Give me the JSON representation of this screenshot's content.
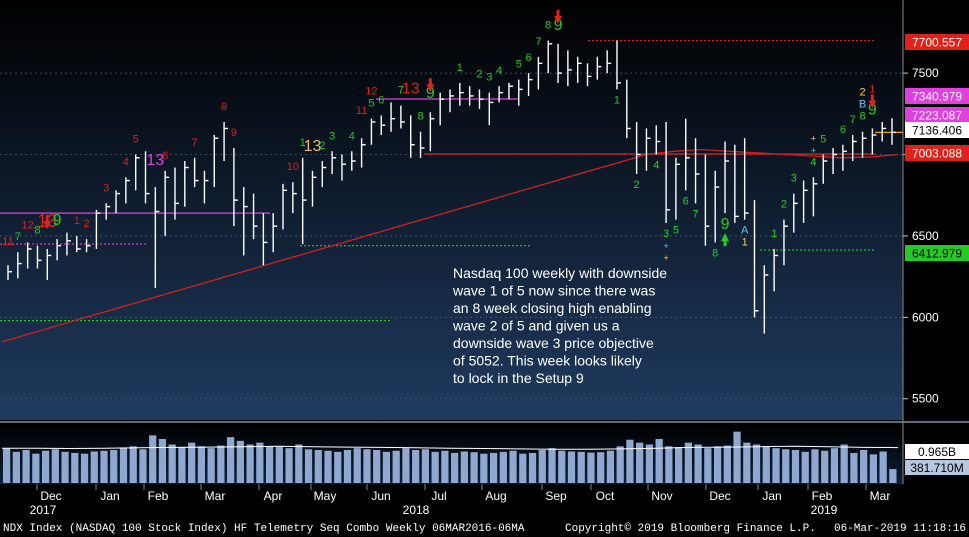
{
  "chart_data": {
    "type": "bar",
    "subtype": "ohlc-weekly",
    "y_ticks": [
      5500,
      6000,
      6500,
      7000,
      7500
    ],
    "ylim": [
      5400,
      7900
    ],
    "price_tags": [
      {
        "value": 7700.557,
        "label": "7700.557",
        "bg": "#e0201a",
        "fg": "#ffffff"
      },
      {
        "value": 7340.979,
        "label": "7340.979",
        "bg": "#e040e0",
        "fg": "#ffffff"
      },
      {
        "value": 7223.087,
        "label": "7223.087",
        "bg": "#e040e0",
        "fg": "#ffffff"
      },
      {
        "value": 7136.406,
        "label": "7136.406",
        "bg": "#ffffff",
        "fg": "#000000"
      },
      {
        "value": 7003.088,
        "label": "7003.088",
        "bg": "#e0201a",
        "fg": "#ffffff"
      },
      {
        "value": 6412.979,
        "label": "6412.979",
        "bg": "#22cc22",
        "fg": "#000000"
      }
    ],
    "volume_tags": [
      {
        "value": 0.965,
        "label": "0.965B",
        "bg": "#ffffff",
        "fg": "#000000"
      },
      {
        "value": 0.38171,
        "label": "381.710M",
        "bg": "#b7c7e0",
        "fg": "#000000"
      }
    ],
    "volume_ylim": [
      0,
      1.5
    ],
    "x_labels": [
      "Dec",
      "Jan",
      "Feb",
      "Mar",
      "Apr",
      "May",
      "Jun",
      "Jul",
      "Aug",
      "Sep",
      "Oct",
      "Nov",
      "Dec",
      "Jan",
      "Feb",
      "Mar"
    ],
    "year_labels": [
      "2017",
      "2018",
      "2019"
    ],
    "bars": [
      {
        "h": 6320,
        "l": 6230,
        "c": 6280
      },
      {
        "h": 6400,
        "l": 6240,
        "c": 6330
      },
      {
        "h": 6460,
        "l": 6300,
        "c": 6420
      },
      {
        "h": 6440,
        "l": 6300,
        "c": 6350
      },
      {
        "h": 6420,
        "l": 6230,
        "c": 6380
      },
      {
        "h": 6480,
        "l": 6350,
        "c": 6440
      },
      {
        "h": 6520,
        "l": 6380,
        "c": 6470
      },
      {
        "h": 6500,
        "l": 6400,
        "c": 6420
      },
      {
        "h": 6480,
        "l": 6400,
        "c": 6440
      },
      {
        "h": 6660,
        "l": 6420,
        "c": 6640
      },
      {
        "h": 6700,
        "l": 6600,
        "c": 6680
      },
      {
        "h": 6780,
        "l": 6640,
        "c": 6760
      },
      {
        "h": 6860,
        "l": 6700,
        "c": 6840
      },
      {
        "h": 7000,
        "l": 6780,
        "c": 6980
      },
      {
        "h": 7020,
        "l": 6700,
        "c": 6760
      },
      {
        "h": 6800,
        "l": 6180,
        "c": 6650
      },
      {
        "h": 6900,
        "l": 6500,
        "c": 6860
      },
      {
        "h": 6920,
        "l": 6600,
        "c": 6700
      },
      {
        "h": 6960,
        "l": 6680,
        "c": 6920
      },
      {
        "h": 6980,
        "l": 6800,
        "c": 6840
      },
      {
        "h": 6900,
        "l": 6700,
        "c": 6840
      },
      {
        "h": 7120,
        "l": 6800,
        "c": 7100
      },
      {
        "h": 7200,
        "l": 6960,
        "c": 7160
      },
      {
        "h": 7040,
        "l": 6560,
        "c": 6720
      },
      {
        "h": 6800,
        "l": 6380,
        "c": 6680
      },
      {
        "h": 6760,
        "l": 6480,
        "c": 6560
      },
      {
        "h": 6640,
        "l": 6320,
        "c": 6460
      },
      {
        "h": 6640,
        "l": 6400,
        "c": 6560
      },
      {
        "h": 6820,
        "l": 6540,
        "c": 6780
      },
      {
        "h": 6830,
        "l": 6640,
        "c": 6760
      },
      {
        "h": 6980,
        "l": 6450,
        "c": 6720
      },
      {
        "h": 6900,
        "l": 6680,
        "c": 6860
      },
      {
        "h": 6960,
        "l": 6800,
        "c": 6920
      },
      {
        "h": 7020,
        "l": 6880,
        "c": 6980
      },
      {
        "h": 7000,
        "l": 6840,
        "c": 6940
      },
      {
        "h": 7020,
        "l": 6900,
        "c": 6960
      },
      {
        "h": 7100,
        "l": 6920,
        "c": 7060
      },
      {
        "h": 7220,
        "l": 7060,
        "c": 7200
      },
      {
        "h": 7240,
        "l": 7120,
        "c": 7180
      },
      {
        "h": 7320,
        "l": 7140,
        "c": 7220
      },
      {
        "h": 7300,
        "l": 7160,
        "c": 7200
      },
      {
        "h": 7240,
        "l": 6980,
        "c": 7060
      },
      {
        "h": 7140,
        "l": 6980,
        "c": 7040
      },
      {
        "h": 7260,
        "l": 7020,
        "c": 7220
      },
      {
        "h": 7380,
        "l": 7180,
        "c": 7340
      },
      {
        "h": 7400,
        "l": 7260,
        "c": 7360
      },
      {
        "h": 7440,
        "l": 7300,
        "c": 7380
      },
      {
        "h": 7420,
        "l": 7300,
        "c": 7360
      },
      {
        "h": 7400,
        "l": 7280,
        "c": 7340
      },
      {
        "h": 7380,
        "l": 7180,
        "c": 7320
      },
      {
        "h": 7420,
        "l": 7320,
        "c": 7380
      },
      {
        "h": 7440,
        "l": 7340,
        "c": 7420
      },
      {
        "h": 7460,
        "l": 7300,
        "c": 7400
      },
      {
        "h": 7500,
        "l": 7360,
        "c": 7460
      },
      {
        "h": 7600,
        "l": 7400,
        "c": 7560
      },
      {
        "h": 7700,
        "l": 7500,
        "c": 7680
      },
      {
        "h": 7680,
        "l": 7440,
        "c": 7500
      },
      {
        "h": 7640,
        "l": 7420,
        "c": 7520
      },
      {
        "h": 7600,
        "l": 7440,
        "c": 7560
      },
      {
        "h": 7560,
        "l": 7420,
        "c": 7480
      },
      {
        "h": 7600,
        "l": 7460,
        "c": 7540
      },
      {
        "h": 7640,
        "l": 7500,
        "c": 7560
      },
      {
        "h": 7700,
        "l": 7400,
        "c": 7440
      },
      {
        "h": 7460,
        "l": 7100,
        "c": 7160
      },
      {
        "h": 7200,
        "l": 6880,
        "c": 7000
      },
      {
        "h": 7160,
        "l": 6900,
        "c": 7100
      },
      {
        "h": 7180,
        "l": 7000,
        "c": 7080
      },
      {
        "h": 7200,
        "l": 6580,
        "c": 6660
      },
      {
        "h": 6980,
        "l": 6600,
        "c": 6940
      },
      {
        "h": 7220,
        "l": 6780,
        "c": 6980
      },
      {
        "h": 7100,
        "l": 6700,
        "c": 6880
      },
      {
        "h": 7000,
        "l": 6440,
        "c": 6560
      },
      {
        "h": 6900,
        "l": 6460,
        "c": 6800
      },
      {
        "h": 7080,
        "l": 6640,
        "c": 6960
      },
      {
        "h": 7060,
        "l": 6580,
        "c": 6620
      },
      {
        "h": 7100,
        "l": 6600,
        "c": 6640
      },
      {
        "h": 6720,
        "l": 6000,
        "c": 6040
      },
      {
        "h": 6320,
        "l": 5900,
        "c": 6260
      },
      {
        "h": 6420,
        "l": 6160,
        "c": 6380
      },
      {
        "h": 6600,
        "l": 6320,
        "c": 6560
      },
      {
        "h": 6760,
        "l": 6520,
        "c": 6700
      },
      {
        "h": 6840,
        "l": 6580,
        "c": 6780
      },
      {
        "h": 6860,
        "l": 6620,
        "c": 6820
      },
      {
        "h": 7000,
        "l": 6820,
        "c": 6960
      },
      {
        "h": 7040,
        "l": 6880,
        "c": 7000
      },
      {
        "h": 7060,
        "l": 6900,
        "c": 7020
      },
      {
        "h": 7120,
        "l": 6960,
        "c": 7080
      },
      {
        "h": 7140,
        "l": 6980,
        "c": 7100
      },
      {
        "h": 7160,
        "l": 7000,
        "c": 7120
      },
      {
        "h": 7200,
        "l": 7080,
        "c": 7160
      },
      {
        "h": 7223,
        "l": 7060,
        "c": 7136
      }
    ],
    "volume": [
      0.95,
      0.85,
      0.9,
      0.8,
      0.88,
      0.92,
      0.85,
      0.82,
      0.8,
      0.86,
      0.88,
      0.9,
      0.95,
      1.0,
      0.92,
      1.3,
      1.2,
      1.05,
      0.98,
      1.1,
      1.0,
      0.95,
      1.02,
      1.25,
      1.15,
      1.05,
      1.1,
      1.0,
      0.98,
      0.95,
      1.05,
      0.92,
      0.9,
      0.88,
      0.85,
      0.9,
      0.95,
      0.92,
      0.9,
      0.85,
      0.88,
      0.95,
      0.9,
      0.92,
      0.85,
      0.88,
      0.82,
      0.86,
      0.84,
      0.8,
      0.82,
      0.85,
      0.88,
      0.8,
      0.82,
      0.9,
      0.95,
      0.88,
      0.86,
      0.85,
      0.83,
      0.84,
      0.88,
      1.0,
      1.18,
      1.1,
      1.05,
      1.2,
      1.0,
      0.98,
      1.1,
      1.05,
      0.95,
      1.0,
      1.02,
      1.4,
      1.1,
      1.05,
      0.98,
      0.95,
      0.92,
      0.9,
      0.85,
      0.92,
      0.88,
      0.95,
      1.05,
      0.82,
      0.9,
      0.78,
      0.86,
      0.38
    ],
    "moving_average": [
      5850,
      5900,
      5950,
      6000,
      6050,
      6100,
      6150,
      6200,
      6250,
      6300,
      6350,
      6400,
      6450,
      6500,
      6550,
      6600,
      6650,
      6700,
      6750,
      6800,
      6850,
      6900,
      6950,
      7000,
      7020,
      7030,
      7020,
      7010,
      7000,
      6990,
      6980,
      6985,
      7000
    ],
    "levels": [
      {
        "value": 7700.557,
        "color": "#e0201a",
        "dash": true
      },
      {
        "value": 7340.979,
        "color": "#e040e0"
      },
      {
        "value": 7003.088,
        "color": "#e0201a"
      },
      {
        "value": 6640,
        "color": "#e040e0"
      },
      {
        "value": 6450,
        "color": "#e040e0",
        "dash": true
      },
      {
        "value": 6440,
        "color": "#22cc22",
        "dash": true
      },
      {
        "value": 6412.979,
        "color": "#22cc22",
        "dash": true
      },
      {
        "value": 5980,
        "color": "#22cc22",
        "dash": true
      }
    ],
    "annotation": "Nasdaq 100 weekly with downside wave 1 of 5 now since there was an 8 week closing high enabling wave 2 of 5 and given us a downside wave 3 price objective of 5052.  This week looks likely to lock in the Setup 9",
    "annotation_lines": [
      "Nasdaq 100 weekly with downside",
      "wave 1 of 5 now since there was",
      "an 8 week closing high enabling",
      "wave 2 of 5 and given us a",
      "downside wave 3 price objective",
      "of 5052.  This week looks likely",
      "to lock in the Setup 9"
    ],
    "counts": [
      {
        "bar": 0,
        "t": "11",
        "c": "#e0201a",
        "s": 11,
        "off": -20
      },
      {
        "bar": 1,
        "t": "7",
        "c": "#22cc22",
        "s": 11,
        "off": -12
      },
      {
        "bar": 2,
        "t": "12",
        "c": "#e0201a",
        "s": 11,
        "off": -14
      },
      {
        "bar": 3,
        "t": "8",
        "c": "#22cc22",
        "s": 11,
        "off": -12
      },
      {
        "bar": 4,
        "t": "13",
        "c": "#e0201a",
        "s": 18,
        "off": -22
      },
      {
        "bar": 5,
        "t": "9",
        "c": "#22cc22",
        "s": 16,
        "off": -14
      },
      {
        "bar": 7,
        "t": "1",
        "c": "#e0201a",
        "s": 11,
        "off": -12
      },
      {
        "bar": 8,
        "t": "2",
        "c": "#e0201a",
        "s": 11,
        "off": -12
      },
      {
        "bar": 10,
        "t": "3",
        "c": "#e0201a",
        "s": 11,
        "off": -12
      },
      {
        "bar": 12,
        "t": "4",
        "c": "#e0201a",
        "s": 11,
        "off": -12
      },
      {
        "bar": 13,
        "t": "5",
        "c": "#e0201a",
        "s": 11,
        "off": -12
      },
      {
        "bar": 15,
        "t": "13",
        "c": "#e040e0",
        "s": 16,
        "off": -22
      },
      {
        "bar": 16,
        "t": "6",
        "c": "#e0201a",
        "s": 11,
        "off": -12
      },
      {
        "bar": 19,
        "t": "7",
        "c": "#e0201a",
        "s": 11,
        "off": -12
      },
      {
        "bar": 22,
        "t": "8",
        "c": "#e0201a",
        "s": 11,
        "off": -12
      },
      {
        "bar": 23,
        "t": "9",
        "c": "#e0201a",
        "s": 11,
        "off": -12
      },
      {
        "bar": 29,
        "t": "10",
        "c": "#e0201a",
        "s": 11,
        "off": -12
      },
      {
        "bar": 30,
        "t": "1",
        "c": "#22cc22",
        "s": 11,
        "off": -12
      },
      {
        "bar": 31,
        "t": "13",
        "c": "#f4b26a",
        "s": 16,
        "off": -20
      },
      {
        "bar": 32,
        "t": "2",
        "c": "#22cc22",
        "s": 11,
        "off": -12
      },
      {
        "bar": 33,
        "t": "3",
        "c": "#22cc22",
        "s": 11,
        "off": -12
      },
      {
        "bar": 35,
        "t": "4",
        "c": "#22cc22",
        "s": 11,
        "off": -12
      },
      {
        "bar": 36,
        "t": "11",
        "c": "#e0201a",
        "s": 11,
        "off": -24
      },
      {
        "bar": 37,
        "t": "5",
        "c": "#22cc22",
        "s": 11,
        "off": -12
      },
      {
        "bar": 37,
        "t": "12",
        "c": "#e0201a",
        "s": 11,
        "off": -24
      },
      {
        "bar": 38,
        "t": "6",
        "c": "#22cc22",
        "s": 11,
        "off": -12
      },
      {
        "bar": 40,
        "t": "7",
        "c": "#22cc22",
        "s": 11,
        "off": -12
      },
      {
        "bar": 41,
        "t": "13",
        "c": "#e0201a",
        "s": 16,
        "off": -22
      },
      {
        "bar": 42,
        "t": "8",
        "c": "#22cc22",
        "s": 11,
        "off": -12
      },
      {
        "bar": 43,
        "t": "9",
        "c": "#22cc22",
        "s": 16,
        "off": -14
      },
      {
        "bar": 46,
        "t": "1",
        "c": "#22cc22",
        "s": 11,
        "off": -12
      },
      {
        "bar": 48,
        "t": "2",
        "c": "#22cc22",
        "s": 11,
        "off": -12
      },
      {
        "bar": 49,
        "t": "3",
        "c": "#22cc22",
        "s": 11,
        "off": -12
      },
      {
        "bar": 50,
        "t": "4",
        "c": "#22cc22",
        "s": 11,
        "off": -12
      },
      {
        "bar": 52,
        "t": "5",
        "c": "#22cc22",
        "s": 11,
        "off": -12
      },
      {
        "bar": 53,
        "t": "6",
        "c": "#22cc22",
        "s": 11,
        "off": -12
      },
      {
        "bar": 54,
        "t": "7",
        "c": "#22cc22",
        "s": 11,
        "off": -12
      },
      {
        "bar": 55,
        "t": "8",
        "c": "#22cc22",
        "s": 11,
        "off": -12
      },
      {
        "bar": 56,
        "t": "9",
        "c": "#22cc22",
        "s": 16,
        "off": -14
      },
      {
        "bar": 62,
        "t": "1",
        "c": "#22cc22",
        "s": 11,
        "off": 14
      },
      {
        "bar": 64,
        "t": "2",
        "c": "#22cc22",
        "s": 11,
        "off": 14
      },
      {
        "bar": 66,
        "t": "4",
        "c": "#22cc22",
        "s": 11,
        "off": 14
      },
      {
        "bar": 67,
        "t": "3",
        "c": "#22cc22",
        "s": 11,
        "off": 14
      },
      {
        "bar": 67,
        "t": "+",
        "c": "#4ad0f0",
        "s": 9,
        "off": 26
      },
      {
        "bar": 67,
        "t": "+",
        "c": "#ffd23a",
        "s": 9,
        "off": 38
      },
      {
        "bar": 68,
        "t": "5",
        "c": "#22cc22",
        "s": 11,
        "off": 14
      },
      {
        "bar": 69,
        "t": "6",
        "c": "#22cc22",
        "s": 11,
        "off": 14
      },
      {
        "bar": 70,
        "t": "7",
        "c": "#22cc22",
        "s": 11,
        "off": 14
      },
      {
        "bar": 72,
        "t": "8",
        "c": "#22cc22",
        "s": 11,
        "off": 14
      },
      {
        "bar": 73,
        "t": "9",
        "c": "#22cc22",
        "s": 16,
        "off": 16
      },
      {
        "bar": 75,
        "t": "A",
        "c": "#4ad0f0",
        "s": 11,
        "off": 14
      },
      {
        "bar": 75,
        "t": "1",
        "c": "#ffd23a",
        "s": 11,
        "off": 26
      },
      {
        "bar": 78,
        "t": "1",
        "c": "#22cc22",
        "s": 11,
        "off": -12
      },
      {
        "bar": 79,
        "t": "2",
        "c": "#22cc22",
        "s": 11,
        "off": -12
      },
      {
        "bar": 80,
        "t": "3",
        "c": "#22cc22",
        "s": 11,
        "off": -12
      },
      {
        "bar": 82,
        "t": "4",
        "c": "#22cc22",
        "s": 11,
        "off": -12
      },
      {
        "bar": 82,
        "t": "+",
        "c": "#4ad0f0",
        "s": 9,
        "off": -24
      },
      {
        "bar": 82,
        "t": "+",
        "c": "#ffd23a",
        "s": 9,
        "off": -36
      },
      {
        "bar": 83,
        "t": "5",
        "c": "#22cc22",
        "s": 11,
        "off": -12
      },
      {
        "bar": 85,
        "t": "6",
        "c": "#22cc22",
        "s": 11,
        "off": -12
      },
      {
        "bar": 86,
        "t": "7",
        "c": "#22cc22",
        "s": 11,
        "off": -12
      },
      {
        "bar": 87,
        "t": "8",
        "c": "#22cc22",
        "s": 11,
        "off": -12
      },
      {
        "bar": 87,
        "t": "B",
        "c": "#4ad0f0",
        "s": 11,
        "off": -24
      },
      {
        "bar": 87,
        "t": "2",
        "c": "#ffd23a",
        "s": 11,
        "off": -36
      },
      {
        "bar": 88,
        "t": "9",
        "c": "#22cc22",
        "s": 16,
        "off": -14
      },
      {
        "bar": 88,
        "t": "1",
        "c": "#e0201a",
        "s": 11,
        "off": -36
      }
    ],
    "arrows": [
      {
        "bar": 4,
        "dir": "down",
        "c": "#e0201a"
      },
      {
        "bar": 43,
        "dir": "down",
        "c": "#e0201a"
      },
      {
        "bar": 56,
        "dir": "down",
        "c": "#e0201a"
      },
      {
        "bar": 73,
        "dir": "up",
        "c": "#22cc22"
      },
      {
        "bar": 88,
        "dir": "down",
        "c": "#e0201a"
      }
    ]
  },
  "footer": {
    "index_label": "NDX Index (NASDAQ 100 Stock Index) HF Telemetry Seq Combo  Weekly 06MAR2016-06MA",
    "copyright": "Copyright© 2019 Bloomberg Finance L.P.",
    "timestamp": "06-Mar-2019 11:18:16"
  },
  "colors": {
    "bar": "#ffffff",
    "volume": "#8fa8d0",
    "ma": "#d02020",
    "ma_volume": "#ffffff",
    "panel_top": "#000000",
    "panel_bottom": "#1f3b60",
    "grid": "#4a5a70"
  }
}
